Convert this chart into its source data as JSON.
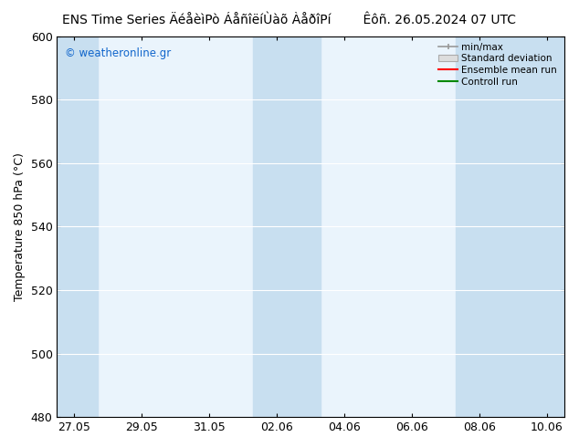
{
  "title_left": "ENS Time Series ÄéåèìPò ÁåñîëíÙàõ ÀåðîPí",
  "title_right": "Êôñ. 26.05.2024 07 UTC",
  "ylabel": "Temperature 850 hPa (°C)",
  "ylim": [
    480,
    600
  ],
  "yticks": [
    480,
    500,
    520,
    540,
    560,
    580,
    600
  ],
  "x_labels": [
    "27.05",
    "29.05",
    "31.05",
    "02.06",
    "04.06",
    "06.06",
    "08.06",
    "10.06"
  ],
  "x_positions": [
    0,
    2,
    4,
    6,
    8,
    10,
    12,
    14
  ],
  "xlim": [
    -0.5,
    14.5
  ],
  "shaded_bands": [
    {
      "x_start": -0.5,
      "x_end": 0.7,
      "color": "#c8dff0"
    },
    {
      "x_start": 5.3,
      "x_end": 7.3,
      "color": "#c8dff0"
    },
    {
      "x_start": 11.3,
      "x_end": 14.5,
      "color": "#c8dff0"
    }
  ],
  "plot_bg_color": "#eaf4fc",
  "bg_color": "#ffffff",
  "legend_labels": [
    "min/max",
    "Standard deviation",
    "Ensemble mean run",
    "Controll run"
  ],
  "legend_colors_line": [
    "#aaaaaa",
    "#cccccc",
    "#ff0000",
    "#008800"
  ],
  "watermark_text": "© weatheronline.gr",
  "watermark_color": "#1166cc",
  "title_fontsize": 10,
  "label_fontsize": 9,
  "tick_fontsize": 9
}
